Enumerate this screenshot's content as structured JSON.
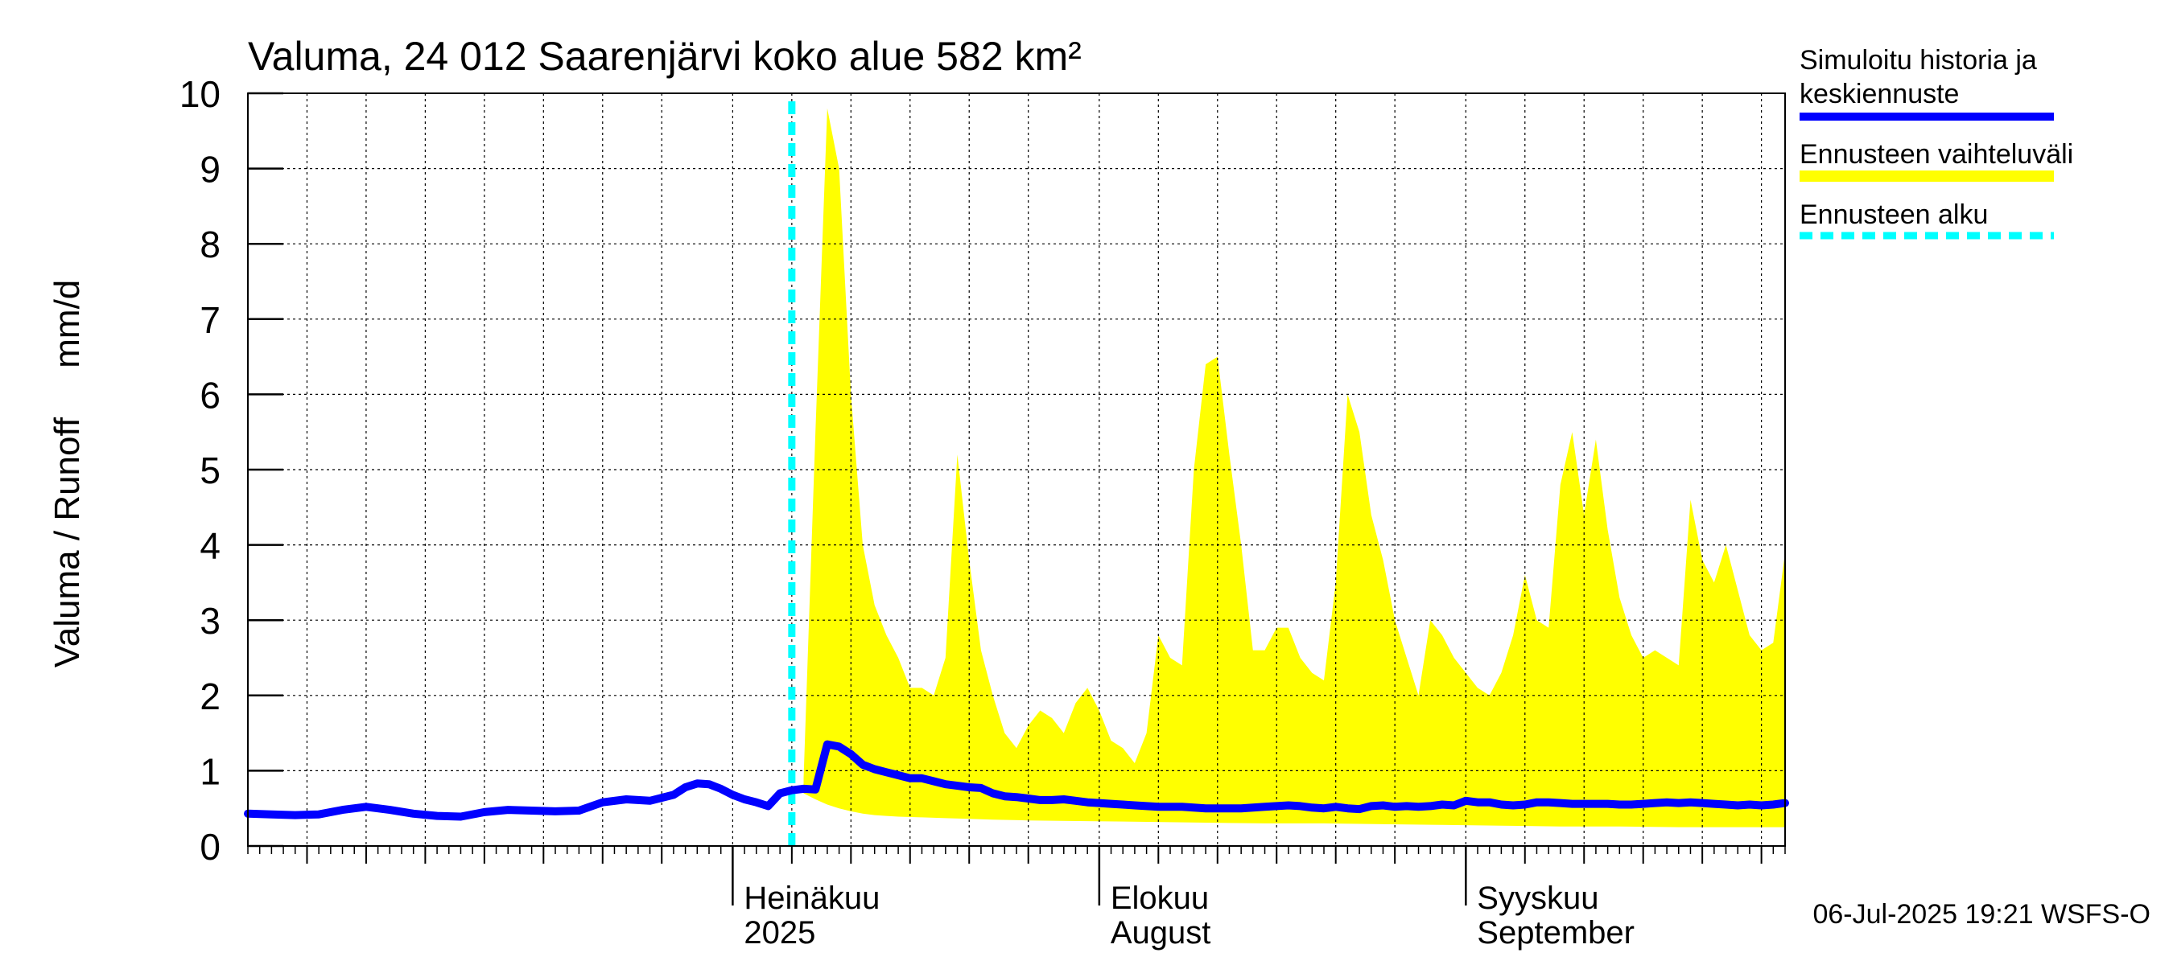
{
  "chart_data": {
    "type": "area",
    "title": "Valuma, 24 012 Saarenjärvi koko alue 582 km²",
    "ylabel": "Valuma / Runoff     mm/d",
    "ylim": [
      0,
      10
    ],
    "yticks": [
      0,
      1,
      2,
      3,
      4,
      5,
      6,
      7,
      8,
      9,
      10
    ],
    "ytick_labels": [
      "0",
      "1",
      "2",
      "3",
      "4",
      "5",
      "6",
      "7",
      "8",
      "9",
      "10"
    ],
    "x_start_day": -41,
    "x_end_day": 89,
    "x_day_zero": "2025-07-01",
    "minor_gridline_days": [
      -36,
      -31,
      -26,
      -21,
      -16,
      -11,
      -6,
      5,
      10,
      15,
      20,
      25,
      36,
      41,
      46,
      51,
      56,
      67,
      72,
      77,
      82,
      87
    ],
    "month_gridline_days": [
      0,
      31,
      62
    ],
    "month_labels": [
      {
        "day": 0,
        "line1": "Heinäkuu",
        "line2": "2025"
      },
      {
        "day": 31,
        "line1": "Elokuu",
        "line2": "August"
      },
      {
        "day": 62,
        "line1": "Syyskuu",
        "line2": "September"
      }
    ],
    "forecast_start_day": 5,
    "grid": true,
    "legend_position": "top-right",
    "legend": [
      {
        "label": "Simuloitu historia ja",
        "label2": "keskiennuste",
        "color": "#0000ff",
        "style": "solid"
      },
      {
        "label": "Ennusteen vaihteluväli",
        "label2": "",
        "color": "#ffff00",
        "style": "band"
      },
      {
        "label": "Ennusteen alku",
        "label2": "",
        "color": "#00ffff",
        "style": "dashed"
      }
    ],
    "footer": "06-Jul-2025 19:21 WSFS-O",
    "colors": {
      "line": "#0000ff",
      "band": "#ffff00",
      "forecast_start": "#00ffff",
      "grid": "#000000"
    },
    "series": [
      {
        "name": "Simuloitu historia ja keskiennuste",
        "points": [
          [
            -41,
            0.43
          ],
          [
            -39,
            0.42
          ],
          [
            -37,
            0.41
          ],
          [
            -35,
            0.42
          ],
          [
            -33,
            0.48
          ],
          [
            -31,
            0.52
          ],
          [
            -29,
            0.48
          ],
          [
            -27,
            0.43
          ],
          [
            -25,
            0.4
          ],
          [
            -23,
            0.39
          ],
          [
            -21,
            0.45
          ],
          [
            -19,
            0.48
          ],
          [
            -17,
            0.47
          ],
          [
            -15,
            0.46
          ],
          [
            -13,
            0.47
          ],
          [
            -11,
            0.58
          ],
          [
            -9,
            0.62
          ],
          [
            -7,
            0.6
          ],
          [
            -5,
            0.68
          ],
          [
            -4,
            0.78
          ],
          [
            -3,
            0.83
          ],
          [
            -2,
            0.82
          ],
          [
            -1,
            0.76
          ],
          [
            0,
            0.68
          ],
          [
            1,
            0.62
          ],
          [
            2,
            0.58
          ],
          [
            3,
            0.53
          ],
          [
            4,
            0.7
          ],
          [
            5,
            0.74
          ],
          [
            6,
            0.76
          ],
          [
            7,
            0.75
          ],
          [
            8,
            1.35
          ],
          [
            9,
            1.32
          ],
          [
            10,
            1.22
          ],
          [
            11,
            1.08
          ],
          [
            12,
            1.02
          ],
          [
            13,
            0.98
          ],
          [
            14,
            0.94
          ],
          [
            15,
            0.9
          ],
          [
            16,
            0.9
          ],
          [
            17,
            0.86
          ],
          [
            18,
            0.82
          ],
          [
            19,
            0.8
          ],
          [
            20,
            0.78
          ],
          [
            21,
            0.77
          ],
          [
            22,
            0.7
          ],
          [
            23,
            0.66
          ],
          [
            24,
            0.65
          ],
          [
            25,
            0.63
          ],
          [
            26,
            0.61
          ],
          [
            27,
            0.61
          ],
          [
            28,
            0.62
          ],
          [
            29,
            0.6
          ],
          [
            30,
            0.58
          ],
          [
            31,
            0.57
          ],
          [
            32,
            0.56
          ],
          [
            33,
            0.55
          ],
          [
            34,
            0.54
          ],
          [
            35,
            0.53
          ],
          [
            36,
            0.52
          ],
          [
            37,
            0.52
          ],
          [
            38,
            0.52
          ],
          [
            39,
            0.51
          ],
          [
            40,
            0.5
          ],
          [
            41,
            0.5
          ],
          [
            42,
            0.5
          ],
          [
            43,
            0.5
          ],
          [
            44,
            0.51
          ],
          [
            45,
            0.52
          ],
          [
            46,
            0.53
          ],
          [
            47,
            0.54
          ],
          [
            48,
            0.53
          ],
          [
            49,
            0.51
          ],
          [
            50,
            0.5
          ],
          [
            51,
            0.52
          ],
          [
            52,
            0.5
          ],
          [
            53,
            0.49
          ],
          [
            54,
            0.53
          ],
          [
            55,
            0.54
          ],
          [
            56,
            0.52
          ],
          [
            57,
            0.53
          ],
          [
            58,
            0.52
          ],
          [
            59,
            0.53
          ],
          [
            60,
            0.55
          ],
          [
            61,
            0.54
          ],
          [
            62,
            0.6
          ],
          [
            63,
            0.58
          ],
          [
            64,
            0.58
          ],
          [
            65,
            0.55
          ],
          [
            66,
            0.54
          ],
          [
            67,
            0.55
          ],
          [
            68,
            0.58
          ],
          [
            69,
            0.58
          ],
          [
            70,
            0.57
          ],
          [
            71,
            0.56
          ],
          [
            72,
            0.56
          ],
          [
            73,
            0.56
          ],
          [
            74,
            0.56
          ],
          [
            75,
            0.55
          ],
          [
            76,
            0.55
          ],
          [
            77,
            0.56
          ],
          [
            78,
            0.57
          ],
          [
            79,
            0.58
          ],
          [
            80,
            0.57
          ],
          [
            81,
            0.58
          ],
          [
            82,
            0.57
          ],
          [
            83,
            0.56
          ],
          [
            84,
            0.55
          ],
          [
            85,
            0.54
          ],
          [
            86,
            0.55
          ],
          [
            87,
            0.54
          ],
          [
            88,
            0.55
          ],
          [
            89,
            0.57
          ]
        ]
      },
      {
        "name": "Ennusteen vaihteluväli (max)",
        "points": [
          [
            6,
            0.9
          ],
          [
            7,
            5.5
          ],
          [
            8,
            9.8
          ],
          [
            9,
            9.0
          ],
          [
            10,
            6.0
          ],
          [
            11,
            4.0
          ],
          [
            12,
            3.2
          ],
          [
            13,
            2.8
          ],
          [
            14,
            2.5
          ],
          [
            15,
            2.1
          ],
          [
            16,
            2.1
          ],
          [
            17,
            2.0
          ],
          [
            18,
            2.5
          ],
          [
            19,
            5.2
          ],
          [
            20,
            3.8
          ],
          [
            21,
            2.6
          ],
          [
            22,
            2.0
          ],
          [
            23,
            1.5
          ],
          [
            24,
            1.3
          ],
          [
            25,
            1.6
          ],
          [
            26,
            1.8
          ],
          [
            27,
            1.7
          ],
          [
            28,
            1.5
          ],
          [
            29,
            1.9
          ],
          [
            30,
            2.1
          ],
          [
            31,
            1.8
          ],
          [
            32,
            1.4
          ],
          [
            33,
            1.3
          ],
          [
            34,
            1.1
          ],
          [
            35,
            1.5
          ],
          [
            36,
            2.8
          ],
          [
            37,
            2.5
          ],
          [
            38,
            2.4
          ],
          [
            39,
            5.0
          ],
          [
            40,
            6.4
          ],
          [
            41,
            6.5
          ],
          [
            42,
            5.2
          ],
          [
            43,
            4.0
          ],
          [
            44,
            2.6
          ],
          [
            45,
            2.6
          ],
          [
            46,
            2.9
          ],
          [
            47,
            2.9
          ],
          [
            48,
            2.5
          ],
          [
            49,
            2.3
          ],
          [
            50,
            2.2
          ],
          [
            51,
            3.5
          ],
          [
            52,
            6.0
          ],
          [
            53,
            5.5
          ],
          [
            54,
            4.4
          ],
          [
            55,
            3.8
          ],
          [
            56,
            3.0
          ],
          [
            57,
            2.5
          ],
          [
            58,
            2.0
          ],
          [
            59,
            3.0
          ],
          [
            60,
            2.8
          ],
          [
            61,
            2.5
          ],
          [
            62,
            2.3
          ],
          [
            63,
            2.1
          ],
          [
            64,
            2.0
          ],
          [
            65,
            2.3
          ],
          [
            66,
            2.8
          ],
          [
            67,
            3.6
          ],
          [
            68,
            3.0
          ],
          [
            69,
            2.9
          ],
          [
            70,
            4.8
          ],
          [
            71,
            5.5
          ],
          [
            72,
            4.4
          ],
          [
            73,
            5.4
          ],
          [
            74,
            4.2
          ],
          [
            75,
            3.3
          ],
          [
            76,
            2.8
          ],
          [
            77,
            2.5
          ],
          [
            78,
            2.6
          ],
          [
            79,
            2.5
          ],
          [
            80,
            2.4
          ],
          [
            81,
            4.6
          ],
          [
            82,
            3.8
          ],
          [
            83,
            3.5
          ],
          [
            84,
            4.0
          ],
          [
            85,
            3.4
          ],
          [
            86,
            2.8
          ],
          [
            87,
            2.6
          ],
          [
            88,
            2.7
          ],
          [
            89,
            3.9
          ]
        ]
      },
      {
        "name": "Ennusteen vaihteluväli (min)",
        "points": [
          [
            6,
            0.7
          ],
          [
            7,
            0.62
          ],
          [
            8,
            0.55
          ],
          [
            9,
            0.5
          ],
          [
            10,
            0.46
          ],
          [
            11,
            0.43
          ],
          [
            12,
            0.41
          ],
          [
            13,
            0.4
          ],
          [
            14,
            0.39
          ],
          [
            16,
            0.38
          ],
          [
            18,
            0.37
          ],
          [
            20,
            0.36
          ],
          [
            22,
            0.35
          ],
          [
            25,
            0.34
          ],
          [
            30,
            0.33
          ],
          [
            35,
            0.32
          ],
          [
            40,
            0.31
          ],
          [
            45,
            0.3
          ],
          [
            50,
            0.3
          ],
          [
            55,
            0.29
          ],
          [
            60,
            0.28
          ],
          [
            65,
            0.27
          ],
          [
            70,
            0.26
          ],
          [
            75,
            0.26
          ],
          [
            80,
            0.25
          ],
          [
            85,
            0.25
          ],
          [
            89,
            0.25
          ]
        ]
      }
    ]
  }
}
